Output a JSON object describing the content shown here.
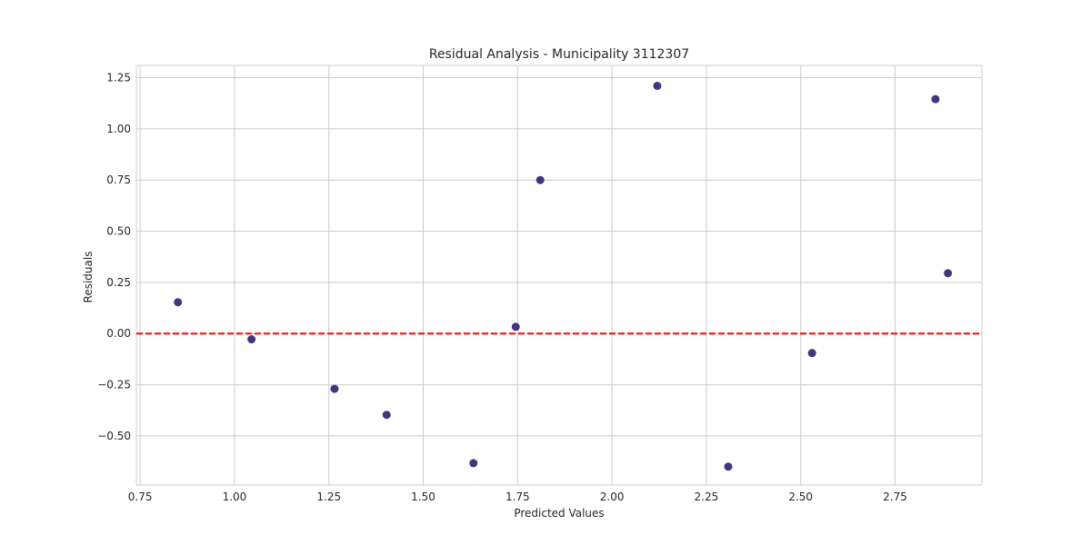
{
  "chart_data": {
    "type": "scatter",
    "title": "Residual Analysis - Municipality 3112307",
    "xlabel": "Predicted Values",
    "ylabel": "Residuals",
    "xlim": [
      0.74,
      2.98
    ],
    "ylim": [
      -0.74,
      1.31
    ],
    "xticks": [
      0.75,
      1.0,
      1.25,
      1.5,
      1.75,
      2.0,
      2.25,
      2.5,
      2.75
    ],
    "xtick_labels": [
      "0.75",
      "1.00",
      "1.25",
      "1.50",
      "1.75",
      "2.00",
      "2.25",
      "2.50",
      "2.75"
    ],
    "yticks": [
      -0.5,
      -0.25,
      0.0,
      0.25,
      0.5,
      0.75,
      1.0,
      1.25
    ],
    "ytick_labels": [
      "−0.50",
      "−0.25",
      "0.00",
      "0.25",
      "0.50",
      "0.75",
      "1.00",
      "1.25"
    ],
    "grid": true,
    "reference_line": {
      "y": 0.0,
      "style": "dashed",
      "color": "#ff0000"
    },
    "marker_color": "#46337e",
    "points": [
      {
        "x": 0.85,
        "y": 0.153
      },
      {
        "x": 1.045,
        "y": -0.028
      },
      {
        "x": 1.265,
        "y": -0.27
      },
      {
        "x": 1.403,
        "y": -0.397
      },
      {
        "x": 1.633,
        "y": -0.633
      },
      {
        "x": 1.745,
        "y": 0.033
      },
      {
        "x": 1.81,
        "y": 0.75
      },
      {
        "x": 2.12,
        "y": 1.21
      },
      {
        "x": 2.308,
        "y": -0.65
      },
      {
        "x": 2.53,
        "y": -0.095
      },
      {
        "x": 2.857,
        "y": 1.145
      },
      {
        "x": 2.89,
        "y": 0.295
      }
    ]
  }
}
